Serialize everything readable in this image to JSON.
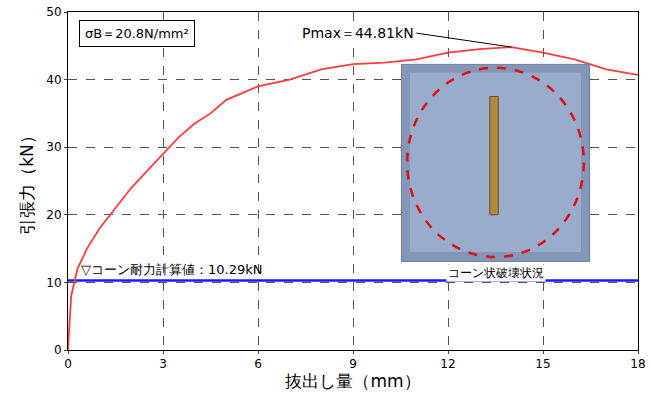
{
  "chart_data": {
    "type": "line",
    "x_label": "抜出し量（mm）",
    "y_label": "引張力（kN）",
    "x": [
      0,
      0.1,
      0.3,
      0.6,
      1,
      1.5,
      2,
      2.5,
      3,
      3.5,
      4,
      4.5,
      5,
      6,
      7,
      8,
      9,
      10,
      11,
      12,
      13,
      14,
      15,
      16,
      17,
      18
    ],
    "values": [
      0,
      8,
      12,
      15,
      18,
      21,
      24,
      26.5,
      29,
      31.5,
      33.5,
      35,
      37,
      39,
      40,
      41.5,
      42.3,
      42.5,
      43,
      44,
      44.5,
      44.81,
      44,
      43,
      41.5,
      40.7
    ],
    "color": "#ff3b3b",
    "xlim": [
      0,
      18
    ],
    "xticks": [
      0,
      3,
      6,
      9,
      12,
      15,
      18
    ],
    "ylim": [
      0,
      50
    ],
    "yticks": [
      0,
      10,
      20,
      30,
      40,
      50
    ],
    "grid": true,
    "reference_line": {
      "y": 10.29,
      "label": "▽コーン耐力計算値：10.29kN",
      "color": "#1a1aff"
    },
    "peak_label": {
      "text": "Pmax＝44.81kN",
      "x": 14,
      "y": 44.81
    },
    "note": "σB＝20.8N/mm²",
    "photo_caption": "コーン状破壊状況"
  }
}
